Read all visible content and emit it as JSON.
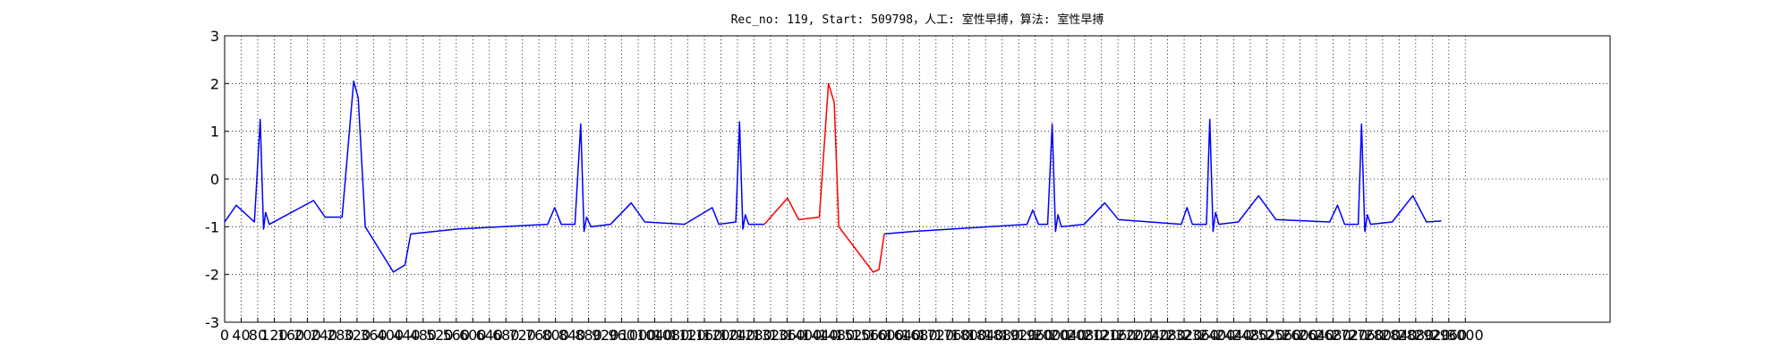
{
  "chart_data": {
    "type": "line",
    "title": "Rec_no: 119, Start: 509798，人工: 室性早搏，算法: 室性早搏",
    "x": [
      0,
      28,
      72,
      86,
      94,
      99,
      108,
      215,
      243,
      284,
      312,
      323,
      340,
      408,
      436,
      450,
      560,
      781,
      798,
      814,
      847,
      861,
      869,
      875,
      886,
      933,
      983,
      1016,
      1112,
      1179,
      1195,
      1236,
      1245,
      1253,
      1259,
      1267,
      1305,
      1361,
      1388,
      1438,
      1460,
      1474,
      1485,
      1568,
      1582,
      1595,
      1664,
      1940,
      1954,
      1968,
      1990,
      2001,
      2009,
      2015,
      2023,
      2078,
      2128,
      2161,
      2313,
      2327,
      2340,
      2374,
      2382,
      2390,
      2396,
      2404,
      2451,
      2500,
      2542,
      2672,
      2691,
      2708,
      2741,
      2749,
      2757,
      2763,
      2771,
      2823,
      2873,
      2906,
      2942
    ],
    "series": [
      {
        "name": "人工",
        "color": "#0000ff",
        "values": [
          -0.9,
          -0.55,
          -0.9,
          1.25,
          -1.05,
          -0.7,
          -0.95,
          -0.45,
          -0.8,
          -0.8,
          2.05,
          1.7,
          -1.0,
          -1.95,
          -1.8,
          -1.15,
          -1.05,
          -0.95,
          -0.6,
          -0.95,
          -0.95,
          1.15,
          -1.1,
          -0.8,
          -1.0,
          -0.95,
          -0.5,
          -0.9,
          -0.95,
          -0.6,
          -0.95,
          -0.9,
          1.2,
          -1.05,
          -0.75,
          -0.95,
          -0.95,
          null,
          null,
          null,
          null,
          null,
          null,
          null,
          null,
          -1.15,
          -1.1,
          -0.95,
          -0.65,
          -0.95,
          -0.95,
          1.15,
          -1.1,
          -0.75,
          -1.0,
          -0.95,
          -0.5,
          -0.85,
          -0.95,
          -0.6,
          -0.95,
          -0.95,
          1.25,
          -1.1,
          -0.7,
          -0.95,
          -0.9,
          -0.35,
          -0.85,
          -0.9,
          -0.55,
          -0.95,
          -0.95,
          1.15,
          -1.1,
          -0.75,
          -0.95,
          -0.9,
          -0.35,
          -0.9,
          -0.88
        ]
      },
      {
        "name": "算法",
        "color": "#ff0000",
        "values": [
          null,
          null,
          null,
          null,
          null,
          null,
          null,
          null,
          null,
          null,
          null,
          null,
          null,
          null,
          null,
          null,
          null,
          null,
          null,
          null,
          null,
          null,
          null,
          null,
          null,
          null,
          null,
          null,
          null,
          null,
          null,
          null,
          null,
          null,
          null,
          null,
          -0.95,
          -0.4,
          -0.85,
          -0.8,
          2.0,
          1.6,
          -1.0,
          -1.95,
          -1.9,
          -1.15,
          null,
          null,
          null,
          null,
          null,
          null,
          null,
          null,
          null,
          null,
          null,
          null,
          null,
          null,
          null,
          null,
          null,
          null,
          null,
          null,
          null,
          null,
          null,
          null,
          null,
          null,
          null,
          null,
          null,
          null,
          null,
          null,
          null,
          null,
          null
        ]
      }
    ],
    "xlim": [
      0,
      3350
    ],
    "xticks": [
      0,
      40,
      80,
      120,
      160,
      200,
      240,
      280,
      320,
      360,
      400,
      440,
      480,
      520,
      560,
      600,
      640,
      680,
      720,
      760,
      800,
      840,
      880,
      920,
      960,
      1000,
      1040,
      1080,
      1120,
      1160,
      1200,
      1240,
      1280,
      1320,
      1360,
      1400,
      1440,
      1480,
      1520,
      1560,
      1600,
      1640,
      1680,
      1720,
      1760,
      1800,
      1840,
      1880,
      1920,
      1960,
      2000,
      2040,
      2080,
      2120,
      2160,
      2200,
      2240,
      2280,
      2320,
      2360,
      2400,
      2440,
      2480,
      2520,
      2560,
      2600,
      2640,
      2680,
      2720,
      2760,
      2800,
      2840,
      2880,
      2920,
      2960,
      3000
    ],
    "ylim": [
      -3,
      3
    ],
    "yticks": [
      -3,
      -2,
      -1,
      0,
      1,
      2,
      3
    ],
    "grid": true
  }
}
